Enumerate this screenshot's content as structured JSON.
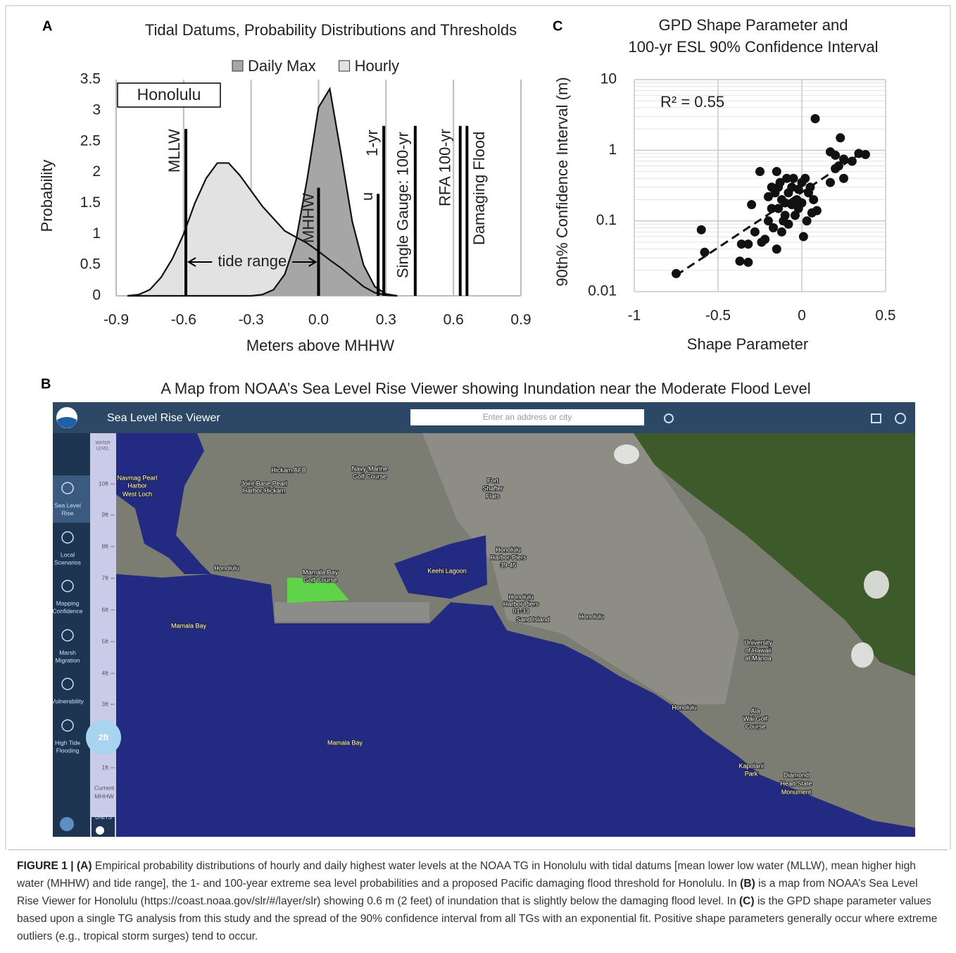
{
  "panel_labels": {
    "A": "A",
    "B": "B",
    "C": "C"
  },
  "chart_data": [
    {
      "type": "area",
      "title": "Tidal Datums, Probability Distributions and Thresholds",
      "xlabel": "Meters above MHHW",
      "ylabel": "Probability",
      "xlim": [
        -0.9,
        0.9
      ],
      "xticks": [
        -0.9,
        -0.6,
        -0.3,
        {
          "value": 0,
          "label": "0.0"
        },
        0.3,
        0.6,
        0.9
      ],
      "ylim": [
        0,
        3.5
      ],
      "yticks": [
        0,
        0.5,
        1,
        1.5,
        2,
        2.5,
        3,
        3.5
      ],
      "grid": "x",
      "legend": "top",
      "x": [
        -0.85,
        -0.8,
        -0.75,
        -0.7,
        -0.65,
        -0.6,
        -0.55,
        -0.5,
        -0.45,
        -0.4,
        -0.35,
        -0.3,
        -0.25,
        -0.2,
        -0.15,
        -0.1,
        -0.05,
        0,
        0.05,
        0.1,
        0.15,
        0.2,
        0.25,
        0.3,
        0.35
      ],
      "series": [
        {
          "name": "Daily Max",
          "color": "#a6a6a6",
          "values": [
            0,
            0,
            0,
            0,
            0,
            0,
            0,
            0,
            0,
            0,
            0,
            0,
            0.02,
            0.1,
            0.35,
            0.9,
            1.9,
            3.05,
            3.35,
            2.3,
            1.2,
            0.5,
            0.15,
            0.03,
            0
          ]
        },
        {
          "name": "Hourly",
          "color": "#e2e2e2",
          "values": [
            0,
            0.02,
            0.1,
            0.3,
            0.6,
            1.0,
            1.5,
            1.9,
            2.15,
            2.15,
            1.95,
            1.7,
            1.45,
            1.25,
            1.05,
            0.95,
            0.85,
            0.72,
            0.58,
            0.45,
            0.3,
            0.15,
            0.05,
            0.01,
            0
          ]
        }
      ],
      "thresholds": [
        {
          "label": "MLLW",
          "x": -0.59,
          "top": 2.7
        },
        {
          "label": "MHHW",
          "x": 0,
          "top": 1.75
        },
        {
          "label": "u",
          "x": 0.265,
          "top": 1.65
        },
        {
          "label": "1-yr",
          "x": 0.29,
          "top": 2.75
        },
        {
          "label": "Single Gauge: 100-yr",
          "x": 0.43,
          "top": 2.75
        },
        {
          "label": "RFA 100-yr",
          "x": 0.63,
          "top": 2.75
        },
        {
          "label": "Damaging Flood",
          "x": 0.66,
          "top": 2.75
        }
      ],
      "site_label": "Honolulu",
      "range_label": "tide range"
    },
    {
      "type": "scatter",
      "title": [
        "GPD Shape Parameter and",
        "100-yr ESL 90% Confidence Interval"
      ],
      "xlabel": "Shape Parameter",
      "ylabel": "90th% Confidence Interval (m)",
      "xlim": [
        -1,
        0.5
      ],
      "xticks": [
        -1,
        -0.5,
        0,
        0.5
      ],
      "ylim": [
        0.01,
        10
      ],
      "yticks": [
        0.01,
        0.1,
        1,
        10
      ],
      "log_y": true,
      "grid": true,
      "minor_yticks": [
        0.02,
        0.03,
        0.04,
        0.05,
        0.06,
        0.07,
        0.08,
        0.09,
        0.2,
        0.3,
        0.4,
        0.5,
        0.6,
        0.7,
        0.8,
        0.9,
        2,
        3,
        4,
        5,
        6,
        7,
        8,
        9
      ],
      "annotation": "R² = 0.55",
      "color": "#111111",
      "x": [
        -0.75,
        -0.6,
        -0.58,
        -0.37,
        -0.32,
        -0.36,
        -0.32,
        -0.28,
        -0.24,
        -0.22,
        -0.3,
        -0.25,
        -0.15,
        -0.15,
        -0.2,
        -0.18,
        -0.2,
        -0.17,
        -0.12,
        -0.1,
        -0.16,
        -0.14,
        -0.12,
        -0.1,
        -0.08,
        -0.06,
        -0.05,
        -0.03,
        -0.02,
        0,
        0.02,
        0.04,
        0.05,
        0.01,
        0.03,
        0.06,
        0.09,
        0.07,
        -0.04,
        -0.08,
        -0.11,
        -0.06,
        -0.02,
        0.08,
        0.17,
        0.17,
        0.2,
        0.23,
        0.22,
        0.25,
        0.25,
        0.2,
        0.3,
        0.34,
        0.38,
        -0.09,
        -0.13,
        0,
        -0.18,
        -0.14
      ],
      "values": [
        0.018,
        0.075,
        0.036,
        0.027,
        0.026,
        0.047,
        0.047,
        0.07,
        0.05,
        0.055,
        0.17,
        0.5,
        0.04,
        0.5,
        0.22,
        0.15,
        0.1,
        0.08,
        0.07,
        0.12,
        0.25,
        0.3,
        0.2,
        0.18,
        0.25,
        0.3,
        0.4,
        0.2,
        0.15,
        0.35,
        0.4,
        0.25,
        0.3,
        0.06,
        0.1,
        0.13,
        0.14,
        0.2,
        0.12,
        0.09,
        0.1,
        0.17,
        0.28,
        2.8,
        0.35,
        0.95,
        0.85,
        1.5,
        0.6,
        0.75,
        0.4,
        0.55,
        0.7,
        0.9,
        0.87,
        0.4,
        0.35,
        0.18,
        0.3,
        0.15
      ],
      "trendline": {
        "x": [
          -0.75,
          0.35
        ],
        "y": [
          0.017,
          0.9
        ]
      }
    }
  ],
  "map": {
    "title": "A Map from NOAA’s Sea Level Rise Viewer showing Inundation near the Moderate Flood Level",
    "app_title": "Sea Level Rise Viewer",
    "search_placeholder": "Enter an address or city",
    "nav": [
      [
        "Sea Level",
        "Rise"
      ],
      [
        "Local",
        "Scenarios"
      ],
      [
        "Mapping",
        "Confidence"
      ],
      [
        "Marsh",
        "Migration"
      ],
      [
        "Vulnerability"
      ],
      [
        "High Tide",
        "Flooding"
      ]
    ],
    "water_level_label": [
      "WATER",
      "LEVEL"
    ],
    "water_levels": [
      "10ft",
      "9ft",
      "8ft",
      "7ft",
      "6ft",
      "5ft",
      "4ft",
      "3ft",
      "1ft"
    ],
    "current_level": "2ft",
    "current_label": [
      "Current",
      "MHHW"
    ],
    "units": "UNITS",
    "places": [
      "Hickam AFB",
      "Navy-Marine",
      "Golf Course",
      "Joint Base Pearl",
      "Harbor-Hickam",
      "Navmag Pearl",
      "Harbor",
      "West Loch",
      "Honolulu",
      "Mamala Bay",
      "Golf Course",
      "Keehi Lagoon",
      "Fort",
      "Shafter",
      "Flats",
      "Honolulu",
      "Harbor-Piers",
      "39-45",
      "Honolulu",
      "Harbor Piers",
      "01-33",
      "Sand Island",
      "Honolulu",
      "Mamala Bay",
      "Mamala Bay",
      "University",
      "of Hawaii",
      "at Manoa",
      "Honolulu",
      "Ala",
      "Wai Golf",
      "Course",
      "Kapolani",
      "Park",
      "Diamond",
      "Head State",
      "Monument"
    ]
  },
  "caption": [
    "FIGURE 1 | (A)",
    " Empirical probability distributions of hourly and daily highest water levels at the NOAA TG in Honolulu with tidal datums [mean lower low water (MLLW), mean higher high water (MHHW) and tide range], the 1- and 100-year extreme sea level probabilities and a proposed Pacific damaging flood threshold for Honolulu. In ",
    "(B)",
    " is a map from NOAA’s Sea Level Rise Viewer for Honolulu (https://coast.noaa.gov/slr/#/layer/slr) showing 0.6 m (2 feet) of inundation that is slightly below the damaging flood level. In ",
    "(C)",
    " is the GPD shape parameter values based upon a single TG analysis from this study and the spread of the 90% confidence interval from all TGs with an exponential fit. Positive shape parameters generally occur where extreme outliers (e.g., tropical storm surges) tend to occur."
  ]
}
